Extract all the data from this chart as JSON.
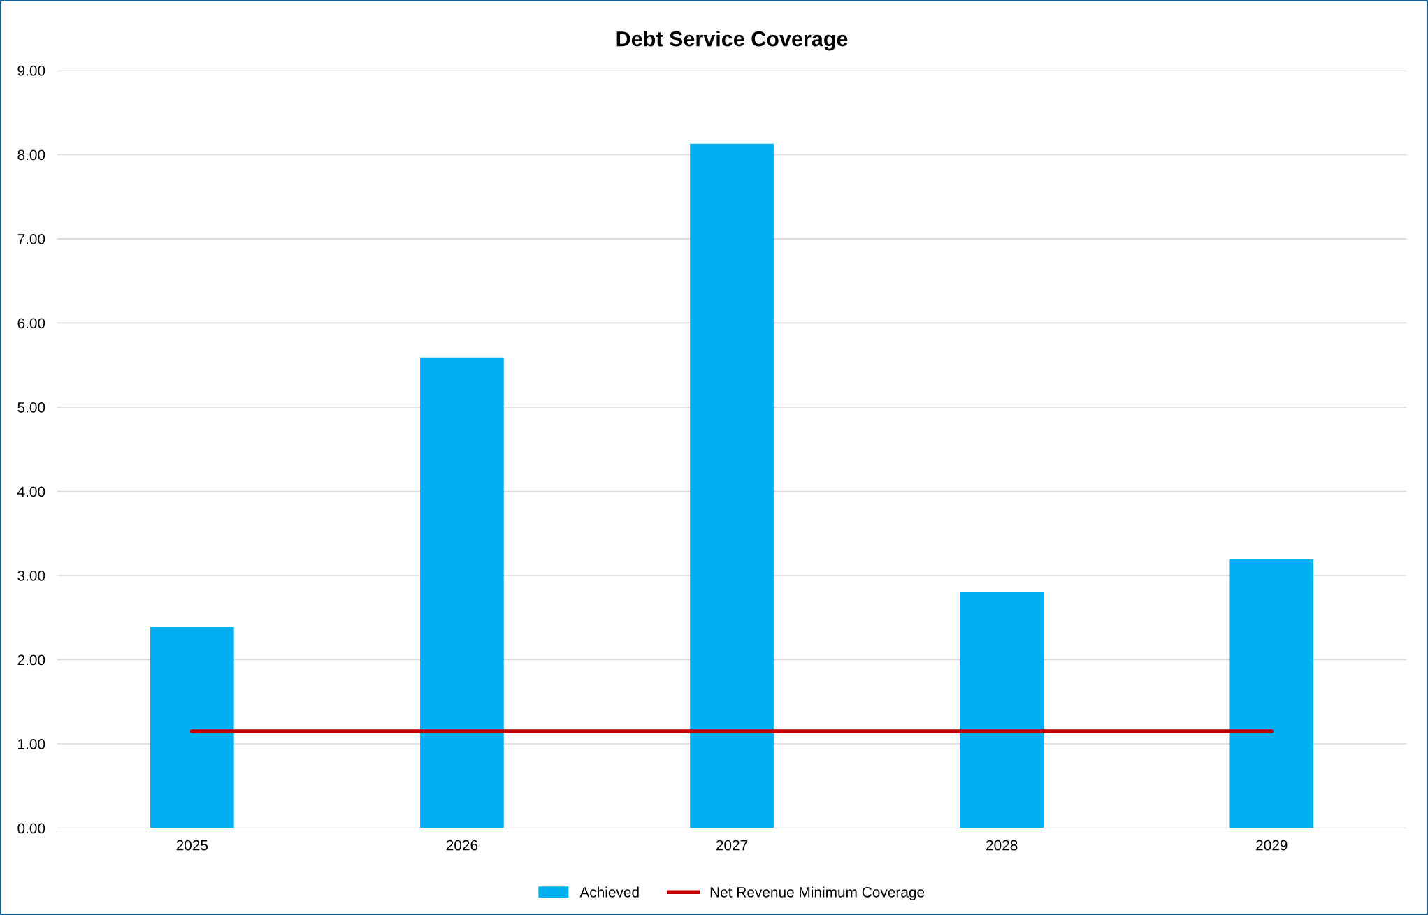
{
  "chart_data": {
    "type": "bar",
    "title": "Debt Service Coverage",
    "categories": [
      "2025",
      "2026",
      "2027",
      "2028",
      "2029"
    ],
    "series": [
      {
        "name": "Achieved",
        "color": "#00b0f0",
        "values": [
          2.39,
          5.59,
          8.13,
          2.8,
          3.19
        ]
      },
      {
        "name": "Net Revenue Minimum Coverage",
        "type": "line",
        "color": "#c00000",
        "values": [
          1.15,
          1.15,
          1.15,
          1.15,
          1.15
        ]
      }
    ],
    "ylim": [
      0,
      9
    ],
    "yticks": [
      {
        "value": 0,
        "label": "0.00"
      },
      {
        "value": 1,
        "label": "1.00"
      },
      {
        "value": 2,
        "label": "2.00"
      },
      {
        "value": 3,
        "label": "3.00"
      },
      {
        "value": 4,
        "label": "4.00"
      },
      {
        "value": 5,
        "label": "5.00"
      },
      {
        "value": 6,
        "label": "6.00"
      },
      {
        "value": 7,
        "label": "7.00"
      },
      {
        "value": 8,
        "label": "8.00"
      },
      {
        "value": 9,
        "label": "9.00"
      }
    ],
    "grid": "y",
    "legend": "bottom"
  }
}
